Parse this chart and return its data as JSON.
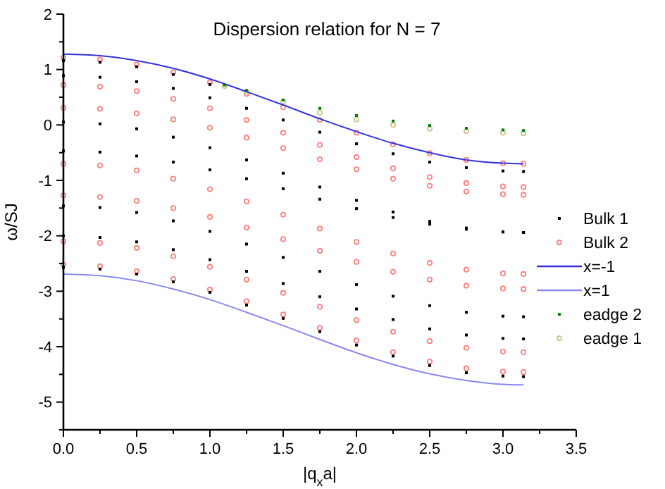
{
  "chart_data": {
    "type": "scatter",
    "title": "Dispersion relation for N = 7",
    "xlabel": "|q$_{x}$a|",
    "ylabel": "ω/SJ",
    "xlim": [
      0,
      3.5
    ],
    "ylim": [
      -5.5,
      2
    ],
    "xticks": [
      {
        "value": 0,
        "label": "0.0"
      },
      {
        "value": 0.25,
        "label": null
      },
      {
        "value": 0.5,
        "label": "0.5"
      },
      {
        "value": 0.75,
        "label": null
      },
      {
        "value": 1,
        "label": "1.0"
      },
      {
        "value": 1.25,
        "label": null
      },
      {
        "value": 1.5,
        "label": "1.5"
      },
      {
        "value": 1.75,
        "label": null
      },
      {
        "value": 2,
        "label": "2.0"
      },
      {
        "value": 2.25,
        "label": null
      },
      {
        "value": 2.5,
        "label": "2.5"
      },
      {
        "value": 2.75,
        "label": null
      },
      {
        "value": 3,
        "label": "3.0"
      },
      {
        "value": 3.25,
        "label": null
      },
      {
        "value": 3.5,
        "label": "3.5"
      }
    ],
    "yticks": [
      {
        "value": -5.5,
        "label": null
      },
      -5,
      {
        "value": -4.5,
        "label": null
      },
      -4,
      {
        "value": -3.5,
        "label": null
      },
      -3,
      {
        "value": -2.5,
        "label": null
      },
      -2,
      {
        "value": -1.5,
        "label": null
      },
      -1,
      {
        "value": -0.5,
        "label": null
      },
      0,
      {
        "value": 0.5,
        "label": null
      },
      1,
      {
        "value": 1.5,
        "label": null
      },
      2
    ],
    "grid": false,
    "legend": "right",
    "series": [
      {
        "name": "Bulk 1",
        "marker": "square",
        "color": "#000000",
        "x": [
          0,
          0.25,
          0.5,
          0.75,
          1,
          0,
          0.25,
          0.5,
          0.75,
          1,
          1.25,
          1.5,
          1.75,
          2,
          2.25,
          2.5,
          2.75,
          3,
          3.14,
          0,
          0.25,
          0.5,
          0.75,
          1,
          1.25,
          1.5,
          1.75,
          2,
          2.25,
          2.5,
          2.75,
          3,
          3.14,
          0,
          0.25,
          0.5,
          0.75,
          1,
          1.25,
          1.5,
          1.75,
          2,
          2.25,
          2.5,
          2.75,
          3,
          3.14,
          0,
          0.25,
          0.5,
          0.75,
          1,
          1.25,
          1.5,
          1.75,
          2,
          2.25,
          2.5,
          2.75,
          3,
          3.14,
          0,
          0.25,
          0.5,
          0.75,
          1,
          1.25,
          1.5,
          1.75,
          2,
          2.25,
          2.5,
          2.75,
          3,
          3.14,
          0,
          0.25,
          0.5,
          0.75,
          1,
          1.25,
          1.5,
          1.75,
          2,
          2.25,
          2.5,
          2.75,
          3,
          3.14
        ],
        "values": [
          1.16,
          1.13,
          1.05,
          0.91,
          0.73,
          0.89,
          0.86,
          0.78,
          0.66,
          0.49,
          0.3,
          0.09,
          -0.13,
          -0.34,
          -0.52,
          -0.67,
          -0.77,
          -0.83,
          -0.84,
          0.05,
          0.02,
          -0.07,
          -0.22,
          -0.41,
          -0.63,
          -0.87,
          -1.12,
          -1.36,
          -1.57,
          -1.74,
          -1.86,
          -1.93,
          -1.94,
          -0.47,
          -0.49,
          -0.56,
          -0.67,
          -0.81,
          -0.97,
          -1.15,
          -1.34,
          -1.51,
          -1.67,
          -1.79,
          -1.88,
          -1.93,
          -1.94,
          -1.46,
          -1.49,
          -1.58,
          -1.73,
          -1.92,
          -2.15,
          -2.39,
          -2.64,
          -2.88,
          -3.09,
          -3.26,
          -3.38,
          -3.45,
          -3.46,
          -2.0,
          -2.03,
          -2.11,
          -2.25,
          -2.43,
          -2.64,
          -2.86,
          -3.1,
          -3.32,
          -3.51,
          -3.68,
          -3.79,
          -3.85,
          -3.86,
          -2.57,
          -2.6,
          -2.69,
          -2.83,
          -3.02,
          -3.25,
          -3.49,
          -3.73,
          -3.97,
          -4.17,
          -4.34,
          -4.47,
          -4.53,
          -4.54
        ]
      },
      {
        "name": "Bulk 2",
        "marker": "circle",
        "color": "#ff8080",
        "x": [
          0,
          0.25,
          0.5,
          0.75,
          1,
          1.25,
          1.5,
          1.75,
          2,
          2.25,
          2.5,
          2.75,
          3,
          3.14,
          0,
          0.25,
          0.5,
          0.75,
          1,
          1.25,
          1.5,
          1.75,
          2,
          2.25,
          2.5,
          2.75,
          3,
          3.14,
          0,
          0.25,
          0.5,
          0.75,
          1,
          1.25,
          1.5,
          1.75,
          2,
          2.25,
          2.5,
          2.75,
          3,
          3.14,
          0,
          0.25,
          0.5,
          0.75,
          1,
          1.25,
          1.5,
          1.75,
          2,
          2.25,
          2.5,
          2.75,
          3,
          3.14,
          0,
          0.25,
          0.5,
          0.75,
          1,
          1.25,
          1.5,
          1.75,
          2,
          2.25,
          2.5,
          2.75,
          3,
          3.14,
          0,
          0.25,
          0.5,
          0.75,
          1,
          1.25,
          1.5,
          1.75,
          2,
          2.25,
          2.5,
          2.75,
          3,
          3.14,
          0,
          0.25,
          0.5,
          0.75,
          1,
          1.25,
          1.5,
          1.75,
          2,
          2.25,
          2.5,
          2.75,
          3,
          3.14
        ],
        "values": [
          1.21,
          1.18,
          1.09,
          0.95,
          0.77,
          0.56,
          0.32,
          0.09,
          -0.14,
          -0.35,
          -0.51,
          -0.63,
          -0.69,
          -0.7,
          0.72,
          0.69,
          0.61,
          0.47,
          0.3,
          0.09,
          -0.14,
          -0.36,
          -0.58,
          -0.78,
          -0.94,
          -1.05,
          -1.11,
          -1.12,
          0.31,
          0.29,
          0.21,
          0.1,
          -0.05,
          -0.23,
          -0.42,
          -0.62,
          -0.8,
          -0.97,
          -1.1,
          -1.2,
          -1.25,
          -1.26,
          -0.7,
          -0.73,
          -0.82,
          -0.97,
          -1.16,
          -1.38,
          -1.62,
          -1.87,
          -2.11,
          -2.32,
          -2.49,
          -2.61,
          -2.68,
          -2.69,
          -1.27,
          -1.3,
          -1.37,
          -1.5,
          -1.66,
          -1.85,
          -2.06,
          -2.27,
          -2.47,
          -2.65,
          -2.79,
          -2.9,
          -2.95,
          -2.96,
          -2.1,
          -2.13,
          -2.22,
          -2.37,
          -2.56,
          -2.79,
          -3.03,
          -3.28,
          -3.52,
          -3.73,
          -3.9,
          -4.02,
          -4.09,
          -4.1,
          -2.52,
          -2.55,
          -2.64,
          -2.78,
          -2.97,
          -3.18,
          -3.42,
          -3.66,
          -3.89,
          -4.1,
          -4.27,
          -4.39,
          -4.45,
          -4.46
        ]
      },
      {
        "name": "x=-1",
        "type": "line",
        "marker": "none",
        "line_style": "solid",
        "color": "#3333dd",
        "x": [
          0,
          0.25,
          0.5,
          0.75,
          1,
          1.25,
          1.5,
          1.75,
          2,
          2.25,
          2.5,
          2.75,
          3,
          3.14
        ],
        "values": [
          1.28,
          1.25,
          1.16,
          1.02,
          0.83,
          0.6,
          0.36,
          0.11,
          -0.12,
          -0.33,
          -0.5,
          -0.63,
          -0.69,
          -0.7
        ]
      },
      {
        "name": "x=1",
        "type": "line",
        "marker": "none",
        "line_style": "solid",
        "color": "#8888ee",
        "x": [
          0,
          0.25,
          0.5,
          0.75,
          1,
          1.25,
          1.5,
          1.75,
          2,
          2.25,
          2.5,
          2.75,
          3,
          3.14
        ],
        "values": [
          -2.69,
          -2.72,
          -2.81,
          -2.96,
          -3.15,
          -3.38,
          -3.62,
          -3.87,
          -4.11,
          -4.32,
          -4.49,
          -4.61,
          -4.68,
          -4.69
        ]
      },
      {
        "name": "eadge 2",
        "marker": "square",
        "color": "#008000",
        "x": [
          1.1,
          1.25,
          1.5,
          1.75,
          2,
          2.25,
          2.5,
          2.75,
          3,
          3.14
        ],
        "values": [
          0.72,
          0.62,
          0.45,
          0.3,
          0.17,
          0.07,
          -0.01,
          -0.06,
          -0.09,
          -0.1
        ]
      },
      {
        "name": "eadge 1",
        "marker": "circle",
        "color": "#c8c890",
        "x": [
          1.1,
          1.25,
          1.5,
          1.75,
          2,
          2.25,
          2.5,
          2.75,
          3,
          3.14
        ],
        "values": [
          0.7,
          0.6,
          0.42,
          0.22,
          0.1,
          0.0,
          -0.07,
          -0.11,
          -0.14,
          -0.15
        ]
      }
    ]
  }
}
